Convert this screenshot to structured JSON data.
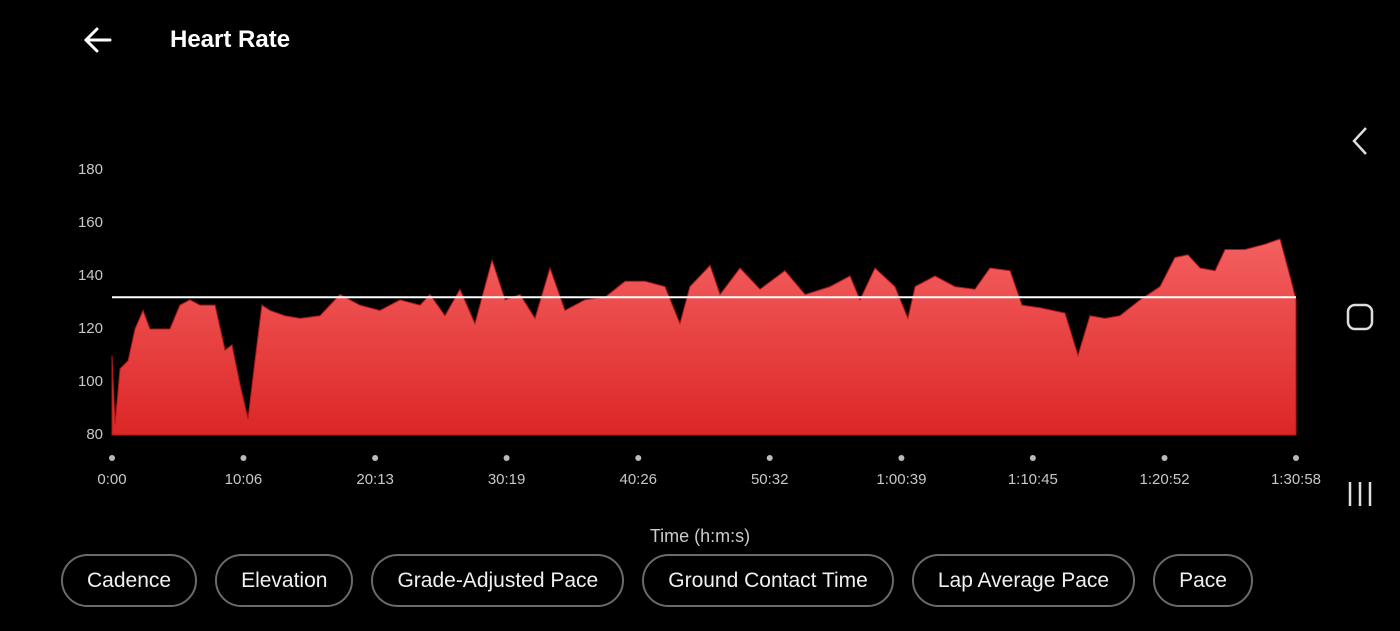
{
  "header": {
    "title": "Heart Rate"
  },
  "chart_data": {
    "type": "area",
    "x_label": "Time (h:m:s)",
    "color": "#e83232",
    "x": [
      0,
      14,
      37,
      74,
      106,
      143,
      175,
      221,
      267,
      313,
      359,
      406,
      475,
      521,
      553,
      590,
      627,
      659,
      691,
      728,
      797,
      867,
      959,
      1051,
      1143,
      1235,
      1328,
      1420,
      1466,
      1535,
      1604,
      1673,
      1752,
      1812,
      1881,
      1950,
      2019,
      2088,
      2180,
      2273,
      2365,
      2457,
      2549,
      2618,
      2664,
      2757,
      2803,
      2895,
      2987,
      3102,
      3195,
      3310,
      3402,
      3448,
      3517,
      3609,
      3669,
      3702,
      3794,
      3886,
      3978,
      4047,
      4140,
      4195,
      4278,
      4393,
      4453,
      4508,
      4577,
      4646,
      4739,
      4831,
      4900,
      4960,
      5016,
      5085,
      5131,
      5223,
      5315,
      5384,
      5430,
      5458
    ],
    "values": [
      110,
      84,
      105,
      108,
      120,
      127,
      120,
      120,
      120,
      129,
      131,
      129,
      129,
      112,
      114,
      99,
      86,
      108,
      129,
      127,
      125,
      124,
      125,
      133,
      129,
      127,
      131,
      129,
      133,
      125,
      135,
      122,
      146,
      131,
      133,
      124,
      143,
      127,
      131,
      132,
      138,
      138,
      136,
      122,
      136,
      144,
      133,
      143,
      135,
      142,
      133,
      136,
      140,
      131,
      143,
      136,
      124,
      136,
      140,
      136,
      135,
      143,
      142,
      129,
      128,
      126,
      110,
      125,
      124,
      125,
      131,
      136,
      147,
      148,
      143,
      142,
      150,
      150,
      152,
      154,
      140,
      131
    ],
    "reference_line": 132,
    "xlim": [
      0,
      5458
    ],
    "xticks": [
      {
        "value": 0,
        "label": "0:00"
      },
      {
        "value": 606,
        "label": "10:06"
      },
      {
        "value": 1213,
        "label": "20:13"
      },
      {
        "value": 1819,
        "label": "30:19"
      },
      {
        "value": 2426,
        "label": "40:26"
      },
      {
        "value": 3032,
        "label": "50:32"
      },
      {
        "value": 3639,
        "label": "1:00:39"
      },
      {
        "value": 4245,
        "label": "1:10:45"
      },
      {
        "value": 4852,
        "label": "1:20:52"
      },
      {
        "value": 5458,
        "label": "1:30:58"
      }
    ],
    "ylim": [
      80,
      180
    ],
    "yticks": [
      80,
      100,
      120,
      140,
      160,
      180
    ]
  },
  "chips": [
    "Cadence",
    "Elevation",
    "Grade-Adjusted Pace",
    "Ground Contact Time",
    "Lap Average Pace",
    "Pace"
  ]
}
